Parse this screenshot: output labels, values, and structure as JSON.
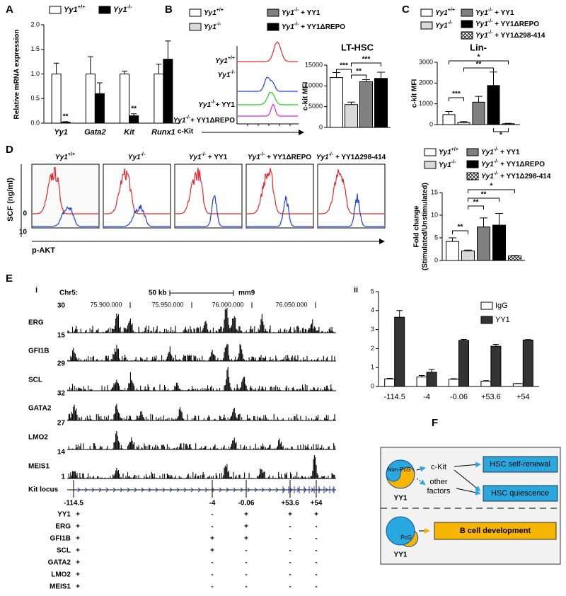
{
  "panel_labels": [
    "A",
    "B",
    "C",
    "D",
    "E",
    "F"
  ],
  "chart_data": [
    {
      "type": "bar",
      "ylabel": "Relative mRNA expression",
      "categories": [
        "Yy1",
        "Gata2",
        "Kit",
        "Runx1"
      ],
      "series": [
        {
          "name": "Yy1+/+",
          "color": "#ffffff",
          "values": [
            1.0,
            1.0,
            1.0,
            1.0
          ],
          "errors": [
            0.22,
            0.35,
            0.06,
            0.2
          ]
        },
        {
          "name": "Yy1-/-",
          "color": "#000000",
          "values": [
            0.02,
            0.6,
            0.15,
            1.3
          ],
          "errors": [
            0.01,
            0.22,
            0.04,
            0.37
          ]
        }
      ],
      "ylim": [
        0,
        2
      ],
      "yticks": [
        {
          "value": 0,
          "label": "0.0"
        },
        {
          "value": 0.5,
          "label": "0.5"
        },
        {
          "value": 1,
          "label": "1.0"
        },
        {
          "value": 1.5,
          "label": "1.5"
        },
        {
          "value": 2,
          "label": "2.0"
        }
      ],
      "annotations": [
        "**",
        "**"
      ]
    },
    {
      "type": "bar",
      "title": "LT-HSC",
      "ylabel": "c-kit MFI",
      "series": [
        {
          "name": "Yy1+/+",
          "color": "#ffffff",
          "values": [
            12000
          ],
          "errors": [
            1200
          ]
        },
        {
          "name": "Yy1-/-",
          "color": "#d9d9d9",
          "values": [
            5500
          ],
          "errors": [
            600
          ]
        },
        {
          "name": "Yy1-/- + YY1",
          "color": "#808080",
          "values": [
            11000
          ],
          "errors": [
            500
          ]
        },
        {
          "name": "Yy1-/- + YY1ΔREPO",
          "color": "#000000",
          "values": [
            11800
          ],
          "errors": [
            1500
          ]
        }
      ],
      "ylim": [
        0,
        15000
      ],
      "yticks": [
        0,
        5000,
        10000,
        15000
      ],
      "annotations": [
        "***",
        "**",
        "***"
      ]
    },
    {
      "type": "bar",
      "title": "Lin-",
      "ylabel": "c-kit MFI",
      "series": [
        {
          "name": "Yy1+/+",
          "color": "#ffffff",
          "values": [
            480
          ],
          "errors": [
            150
          ]
        },
        {
          "name": "Yy1-/-",
          "color": "#d9d9d9",
          "values": [
            100
          ],
          "errors": [
            40
          ]
        },
        {
          "name": "Yy1-/- + YY1",
          "color": "#808080",
          "values": [
            1080
          ],
          "errors": [
            280
          ]
        },
        {
          "name": "Yy1-/- + YY1ΔREPO",
          "color": "#000000",
          "values": [
            1880
          ],
          "errors": [
            650
          ]
        },
        {
          "name": "Yy1-/- + YY1Δ298-414",
          "color": "#ffffff",
          "pattern": "hatch",
          "values": [
            40
          ],
          "errors": [
            20
          ]
        }
      ],
      "ylim": [
        0,
        3000
      ],
      "yticks": [
        0,
        1000,
        2000,
        3000
      ],
      "annotations": [
        "***",
        "**",
        "*",
        "*"
      ]
    },
    {
      "type": "bar",
      "ylabel": [
        "Fold change",
        "(Stimulated/Unstimulated)"
      ],
      "series": [
        {
          "name": "Yy1+/+",
          "color": "#ffffff",
          "values": [
            4.2
          ],
          "errors": [
            0.8
          ]
        },
        {
          "name": "Yy1-/-",
          "color": "#d9d9d9",
          "values": [
            2.1
          ],
          "errors": [
            0.2
          ]
        },
        {
          "name": "Yy1-/- + YY1",
          "color": "#808080",
          "values": [
            7.4
          ],
          "errors": [
            2.0
          ]
        },
        {
          "name": "Yy1-/- + YY1ΔREPO",
          "color": "#000000",
          "values": [
            7.8
          ],
          "errors": [
            2.6
          ]
        },
        {
          "name": "Yy1-/- + YY1Δ298-414",
          "color": "#ffffff",
          "pattern": "hatch",
          "values": [
            1.0
          ],
          "errors": [
            0.1
          ]
        }
      ],
      "ylim": [
        0,
        15
      ],
      "yticks": [
        0,
        5,
        10,
        15
      ],
      "annotations": [
        "**",
        "**",
        "**",
        "*"
      ]
    },
    {
      "type": "bar",
      "categories": [
        "-114.5",
        "-4",
        "-0.06",
        "+53.6",
        "+54"
      ],
      "series": [
        {
          "name": "IgG",
          "color": "#ffffff",
          "values": [
            0.4,
            0.5,
            0.38,
            0.28,
            0.15
          ],
          "errors": [
            0.03,
            0.08,
            0.03,
            0.03,
            0.01
          ]
        },
        {
          "name": "YY1",
          "color": "#333333",
          "values": [
            3.65,
            0.75,
            2.43,
            2.12,
            2.45
          ],
          "errors": [
            0.35,
            0.15,
            0.05,
            0.1,
            0.02
          ]
        }
      ],
      "ylim": [
        0,
        5
      ],
      "yticks": [
        0,
        1,
        2,
        3,
        4,
        5
      ]
    }
  ],
  "panel_b_flow": {
    "samples": [
      "Yy1+/+",
      "Yy1-/-",
      "Yy1-/-+ YY1",
      "Yy1-/-+ YY1ΔREPO"
    ],
    "xlabel": "c-Kit"
  },
  "panel_d_flow": {
    "samples": [
      "Yy1+/+",
      "Yy1-/-",
      "Yy1-/- + YY1",
      "Yy1-/- + YY1ΔREPO",
      "Yy1-/- + YY1Δ298-414"
    ],
    "ylabel": "SCF (ng/ml)",
    "conditions": [
      0,
      10
    ],
    "xlabel": "p-AKT"
  },
  "panel_e": {
    "sub_labels": [
      "i",
      "ii"
    ],
    "chromosome": "Chr5:",
    "scale_bar": "50 kb",
    "assembly": "mm9",
    "coordinates": [
      "75.900.000",
      "75.950.000",
      "76.000.000",
      "76.050.000"
    ],
    "tracks": [
      "ERG",
      "GFI1B",
      "SCL",
      "GATA2",
      "LMO2",
      "MEIS1"
    ],
    "track_scales": [
      30,
      15,
      29,
      32,
      27,
      14,
      1
    ],
    "locus": "Kit locus",
    "sites": [
      "-114.5",
      "-4",
      "-0.06",
      "+53.6",
      "+54"
    ],
    "binding": {
      "factors": [
        "YY1",
        "ERG",
        "GFI1B",
        "SCL",
        "GATA2",
        "LMO2",
        "MEIS1"
      ],
      "rows": [
        [
          "+",
          "-",
          "+",
          "+",
          "+"
        ],
        [
          "+",
          "-",
          "+",
          "-",
          "-"
        ],
        [
          "+",
          "+",
          "+",
          "-",
          "-"
        ],
        [
          "+",
          "+",
          "-",
          "-",
          "-"
        ],
        [
          "+",
          "-",
          "-",
          "-",
          "-"
        ],
        [
          "+",
          "-",
          "-",
          "-",
          "-"
        ],
        [
          "+",
          "-",
          "-",
          "-",
          "-"
        ]
      ]
    }
  },
  "panel_f": {
    "state_active": "Non-PcG",
    "state_repressive": "PcG",
    "protein": "YY1",
    "mediators": [
      [
        "c-Kit"
      ],
      [
        "other",
        "factors"
      ]
    ],
    "outcomes": [
      "HSC self-renewal",
      "HSC quiescence",
      "B cell development"
    ]
  }
}
